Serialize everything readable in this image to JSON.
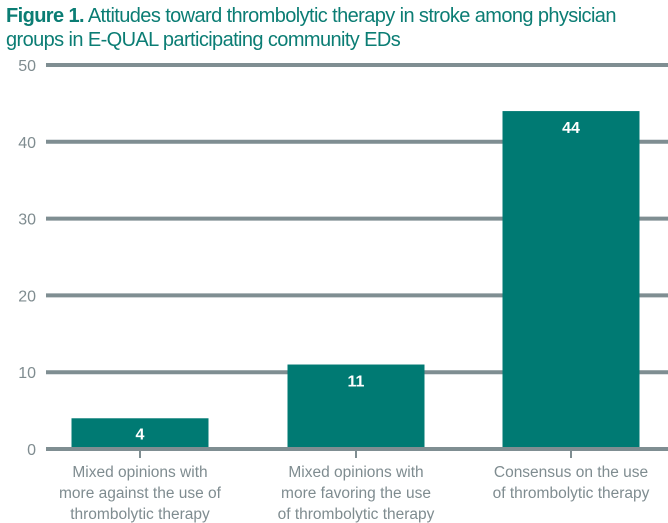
{
  "figure_label": "Figure 1.",
  "chart_data": {
    "type": "bar",
    "title": "Attitudes toward thrombolytic therapy in stroke among physician groups in E-QUAL participating community EDs",
    "categories": [
      [
        "Mixed opinions with",
        "more against the use of",
        "thrombolytic therapy"
      ],
      [
        "Mixed opinions with",
        "more favoring the use",
        "of thrombolytic therapy"
      ],
      [
        "Consensus on the use",
        "of thrombolytic therapy"
      ]
    ],
    "values": [
      4,
      11,
      44
    ],
    "data_labels": [
      "4",
      "11",
      "44"
    ],
    "yticks": [
      0,
      10,
      20,
      30,
      40,
      50
    ],
    "ylim": [
      0,
      50
    ],
    "xlabel": "",
    "ylabel": "",
    "grid": true,
    "colors": {
      "bar": "#007a73",
      "grid": "#7f8e92",
      "title": "#0b7d74",
      "text": "#7f8c90"
    }
  }
}
